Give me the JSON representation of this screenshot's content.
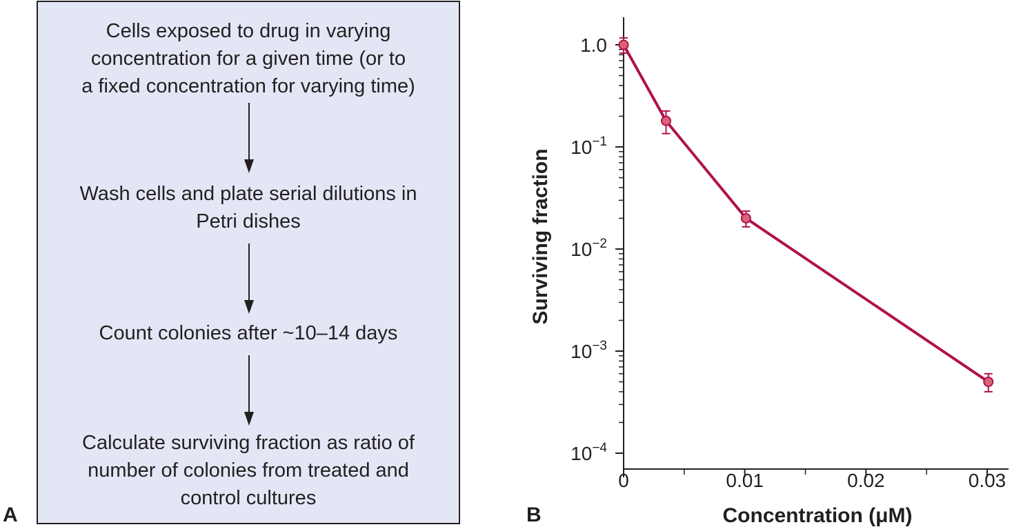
{
  "panel_a": {
    "label": "A",
    "steps": [
      "Cells exposed to drug in varying\nconcentration for a given time (or to\na fixed concentration for varying time)",
      "Wash cells and plate serial dilutions in\nPetri dishes",
      "Count colonies after ~10–14 days",
      "Calculate surviving fraction as ratio of\nnumber of colonies from treated and\ncontrol cultures"
    ]
  },
  "panel_b": {
    "label": "B"
  },
  "colors": {
    "box_fill": "#e3e7f5",
    "series": "#b0124a",
    "marker_fill": "#d9647a",
    "ink": "#231f20"
  },
  "chart_data": {
    "type": "line",
    "title": "",
    "xlabel": "Concentration (μM)",
    "ylabel": "Surviving fraction",
    "xscale": "linear",
    "yscale": "log",
    "xlim": [
      0,
      0.03
    ],
    "ylim": [
      0.0001,
      1.0
    ],
    "xticks": [
      0,
      0.01,
      0.02,
      0.03
    ],
    "xtick_labels": [
      "0",
      "0.01",
      "0.02",
      "0.03"
    ],
    "yticks": [
      1.0,
      0.1,
      0.01,
      0.001,
      0.0001
    ],
    "ytick_labels": [
      {
        "base": "1.0",
        "exp": ""
      },
      {
        "base": "10",
        "exp": "−1"
      },
      {
        "base": "10",
        "exp": "−2"
      },
      {
        "base": "10",
        "exp": "−3"
      },
      {
        "base": "10",
        "exp": "−4"
      }
    ],
    "grid": false,
    "series": [
      {
        "name": "Surviving fraction",
        "x": [
          0,
          0.0035,
          0.0101,
          0.0301
        ],
        "y": [
          1.0,
          0.18,
          0.02,
          0.0005
        ],
        "err_low": [
          0.83,
          0.135,
          0.0165,
          0.0004
        ],
        "err_high": [
          1.17,
          0.225,
          0.0235,
          0.0006
        ]
      }
    ]
  }
}
